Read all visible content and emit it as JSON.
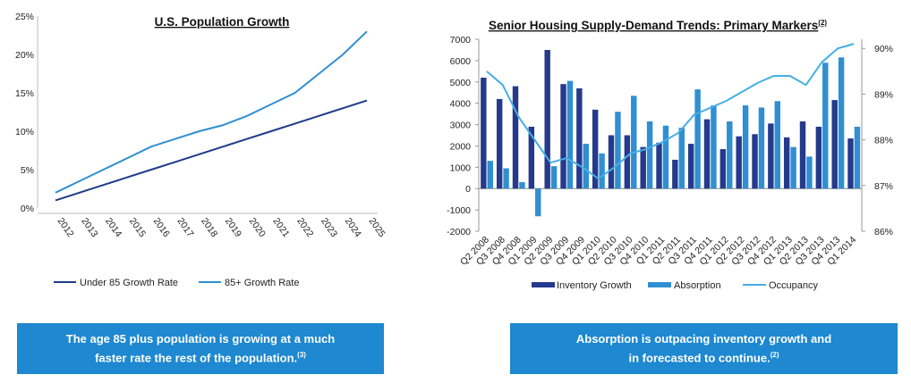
{
  "chart_data": [
    {
      "type": "line",
      "title": "U.S. Population Growth",
      "x": [
        "2012",
        "2013",
        "2014",
        "2015",
        "2016",
        "2017",
        "2018",
        "2019",
        "2020",
        "2021",
        "2022",
        "2023",
        "2024",
        "2025"
      ],
      "y_ticks": [
        "0%",
        "5%",
        "10%",
        "15%",
        "20%",
        "25%"
      ],
      "ylim": [
        0,
        25
      ],
      "series": [
        {
          "name": "Under 85 Growth Rate",
          "color": "#1f3a8a",
          "values": [
            1.0,
            2.0,
            3.0,
            4.0,
            5.0,
            6.0,
            7.0,
            8.0,
            9.0,
            10.0,
            11.0,
            12.0,
            13.0,
            14.0
          ]
        },
        {
          "name": "85+ Growth Rate",
          "color": "#2f8fd2",
          "values": [
            2.0,
            3.5,
            5.0,
            6.5,
            8.0,
            9.0,
            10.0,
            10.8,
            12.0,
            13.5,
            15.0,
            17.5,
            20.0,
            23.0
          ]
        }
      ]
    },
    {
      "type": "bar",
      "title": "Senior Housing Supply-Demand Trends: Primary Markers",
      "title_sup": "(2)",
      "categories": [
        "Q2 2008",
        "Q3 2008",
        "Q4 2008",
        "Q1 2009",
        "Q2 2009",
        "Q3 2009",
        "Q4 2009",
        "Q1 2010",
        "Q2 2010",
        "Q3 2010",
        "Q4 2010",
        "Q1 2011",
        "Q2 2011",
        "Q3 2011",
        "Q4 2011",
        "Q1 2012",
        "Q2 2012",
        "Q3 2012",
        "Q4 2012",
        "Q1 2013",
        "Q2 2013",
        "Q3 2013",
        "Q4 2013",
        "Q1 2014"
      ],
      "left_ticks": [
        "-2000",
        "-1000",
        "0",
        "1000",
        "2000",
        "3000",
        "4000",
        "5000",
        "6000",
        "7000"
      ],
      "left_lim": [
        -2000,
        7000
      ],
      "right_ticks": [
        "86%",
        "87%",
        "88%",
        "89%",
        "90%"
      ],
      "right_lim": [
        86,
        90.2
      ],
      "series": [
        {
          "name": "Inventory Growth",
          "kind": "bar",
          "color": "#253a8c",
          "values": [
            5200,
            4200,
            4800,
            2900,
            6500,
            4900,
            4700,
            3700,
            2500,
            2500,
            1950,
            2150,
            1350,
            2100,
            3250,
            1850,
            2450,
            2550,
            3050,
            2400,
            3150,
            2900,
            4150,
            2350
          ]
        },
        {
          "name": "Absorption",
          "kind": "bar",
          "color": "#2f8fd2",
          "values": [
            1300,
            950,
            300,
            -1300,
            1050,
            5050,
            2100,
            1650,
            3600,
            4350,
            3150,
            2950,
            2850,
            4650,
            3900,
            3150,
            3900,
            3800,
            4100,
            1950,
            1500,
            5900,
            6150,
            2900
          ]
        },
        {
          "name": "Occupancy",
          "kind": "line",
          "color": "#45aee6",
          "values": [
            89.5,
            89.2,
            88.5,
            88.0,
            87.5,
            87.6,
            87.4,
            87.15,
            87.4,
            87.7,
            87.8,
            87.95,
            88.15,
            88.55,
            88.7,
            88.85,
            89.05,
            89.25,
            89.4,
            89.4,
            89.2,
            89.7,
            90.0,
            90.1
          ]
        }
      ]
    }
  ],
  "callouts": {
    "left": {
      "line1": "The age 85 plus population is growing at a much",
      "line2": "faster rate the rest of the population.",
      "sup": "(3)"
    },
    "right": {
      "line1": "Absorption is outpacing inventory growth and",
      "line2": "in forecasted to continue.",
      "sup": "(2)"
    }
  }
}
